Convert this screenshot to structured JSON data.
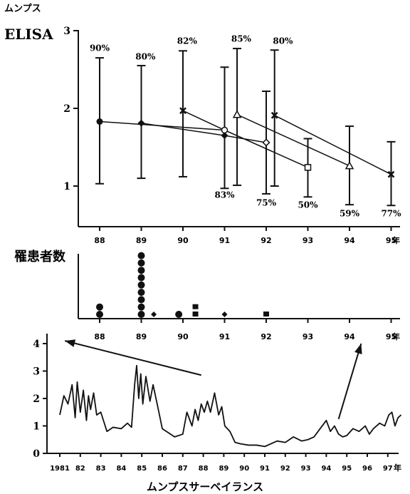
{
  "chart_data": [
    {
      "type": "line",
      "title_line1": "ムンプス",
      "title_line2": "ELISA",
      "ylim": [
        0.5,
        3
      ],
      "y_ticks": [
        1,
        2,
        3
      ],
      "x_ticks": [
        "88",
        "89",
        "90",
        "91",
        "92",
        "93",
        "94",
        "95"
      ],
      "x_unit": "年",
      "series": [
        {
          "marker": "circle-filled",
          "points": [
            [
              88,
              1.83
            ],
            [
              91,
              1.72
            ],
            [
              93,
              1.24
            ]
          ],
          "end_marker": "square-open"
        },
        {
          "marker": "diamond-filled",
          "points": [
            [
              89,
              1.81
            ],
            [
              91,
              1.65
            ],
            [
              92,
              1.56
            ]
          ],
          "end_marker": "diamond-open"
        },
        {
          "marker": "x",
          "points": [
            [
              90,
              1.97
            ],
            [
              91,
              1.72
            ]
          ],
          "end_marker": "circle-open"
        },
        {
          "marker": "triangle-open",
          "points": [
            [
              91.3,
              1.92
            ],
            [
              94,
              1.26
            ]
          ]
        },
        {
          "marker": "x",
          "points": [
            [
              92.2,
              1.91
            ],
            [
              95,
              1.15
            ]
          ]
        }
      ],
      "error_bars": [
        {
          "x": 88,
          "y": 1.83,
          "low": 1.03,
          "high": 2.65
        },
        {
          "x": 89,
          "y": 1.81,
          "low": 1.1,
          "high": 2.55
        },
        {
          "x": 90,
          "y": 1.97,
          "low": 1.12,
          "high": 2.74
        },
        {
          "x": 91,
          "y": 1.72,
          "low": 0.97,
          "high": 2.53
        },
        {
          "x": 91.3,
          "y": 1.92,
          "low": 1.01,
          "high": 2.77
        },
        {
          "x": 92,
          "y": 1.56,
          "low": 0.9,
          "high": 2.22
        },
        {
          "x": 92.2,
          "y": 1.91,
          "low": 1.0,
          "high": 2.75
        },
        {
          "x": 93,
          "y": 1.24,
          "low": 0.86,
          "high": 1.61
        },
        {
          "x": 94,
          "y": 1.26,
          "low": 0.76,
          "high": 1.77
        },
        {
          "x": 95,
          "y": 1.15,
          "low": 0.75,
          "high": 1.57
        }
      ],
      "annotations": [
        {
          "text": "90%",
          "x": 88,
          "y": 2.74
        },
        {
          "text": "80%",
          "x": 89.1,
          "y": 2.63
        },
        {
          "text": "82%",
          "x": 90.1,
          "y": 2.83
        },
        {
          "text": "85%",
          "x": 91.4,
          "y": 2.86
        },
        {
          "text": "80%",
          "x": 92.4,
          "y": 2.83
        },
        {
          "text": "83%",
          "x": 91.0,
          "y": 0.85
        },
        {
          "text": "75%",
          "x": 92.0,
          "y": 0.75
        },
        {
          "text": "50%",
          "x": 93.0,
          "y": 0.72
        },
        {
          "text": "59%",
          "x": 94.0,
          "y": 0.61
        },
        {
          "text": "77%",
          "x": 95.0,
          "y": 0.61
        }
      ]
    },
    {
      "type": "scatter",
      "title": "罹患者数",
      "x_ticks": [
        "88",
        "89",
        "90",
        "91",
        "92",
        "93",
        "94",
        "95"
      ],
      "x_unit": "年",
      "points": [
        {
          "x": 88.0,
          "count": 2,
          "marker": "circle"
        },
        {
          "x": 89.0,
          "count": 9,
          "marker": "circle"
        },
        {
          "x": 89.3,
          "count": 1,
          "marker": "diamond"
        },
        {
          "x": 89.9,
          "count": 1,
          "marker": "circle"
        },
        {
          "x": 90.3,
          "count": 2,
          "marker": "square"
        },
        {
          "x": 91.0,
          "count": 1,
          "marker": "diamond"
        },
        {
          "x": 92.0,
          "count": 1,
          "marker": "square"
        }
      ]
    },
    {
      "type": "line",
      "ylim": [
        0,
        4.3
      ],
      "y_ticks": [
        0,
        1,
        2,
        3,
        4
      ],
      "x_ticks": [
        "1981",
        "82",
        "83",
        "84",
        "85",
        "86",
        "87",
        "88",
        "89",
        "90",
        "91",
        "92",
        "93",
        "94",
        "95",
        "96",
        "97"
      ],
      "x_unit": "年",
      "xlabel": "ムンプスサーベイランス",
      "x": [
        1981.0,
        1981.2,
        1981.4,
        1981.6,
        1981.75,
        1981.85,
        1982.0,
        1982.15,
        1982.3,
        1982.4,
        1982.5,
        1982.65,
        1982.8,
        1983.0,
        1983.3,
        1983.6,
        1984.0,
        1984.3,
        1984.5,
        1984.65,
        1984.75,
        1984.85,
        1984.95,
        1985.05,
        1985.2,
        1985.4,
        1985.55,
        1985.75,
        1986.0,
        1986.3,
        1986.6,
        1987.0,
        1987.2,
        1987.45,
        1987.6,
        1987.75,
        1987.9,
        1988.05,
        1988.2,
        1988.35,
        1988.55,
        1988.75,
        1988.9,
        1989.05,
        1989.3,
        1989.55,
        1989.8,
        1990.2,
        1990.6,
        1991.0,
        1991.3,
        1991.6,
        1992.0,
        1992.4,
        1992.8,
        1993.1,
        1993.4,
        1993.7,
        1994.0,
        1994.2,
        1994.4,
        1994.6,
        1994.8,
        1995.0,
        1995.3,
        1995.6,
        1995.9,
        1996.1,
        1996.3,
        1996.6,
        1996.85,
        1997.05,
        1997.2,
        1997.35,
        1997.5,
        1997.65
      ],
      "y": [
        1.4,
        2.1,
        1.8,
        2.5,
        1.3,
        2.6,
        1.5,
        2.3,
        1.2,
        2.1,
        1.6,
        2.2,
        1.4,
        1.5,
        0.8,
        0.95,
        0.9,
        1.1,
        0.95,
        2.5,
        3.2,
        2.0,
        2.9,
        1.8,
        2.8,
        1.9,
        2.5,
        1.8,
        0.9,
        0.75,
        0.6,
        0.7,
        1.5,
        1.0,
        1.6,
        1.2,
        1.8,
        1.5,
        1.9,
        1.5,
        2.2,
        1.4,
        1.7,
        1.0,
        0.8,
        0.4,
        0.35,
        0.3,
        0.3,
        0.25,
        0.35,
        0.45,
        0.4,
        0.6,
        0.45,
        0.5,
        0.6,
        0.9,
        1.2,
        0.8,
        1.0,
        0.7,
        0.6,
        0.65,
        0.9,
        0.8,
        1.0,
        0.7,
        0.9,
        1.1,
        1.0,
        1.4,
        1.5,
        1.0,
        1.3,
        1.4
      ],
      "arrows": [
        {
          "from": [
            1987.9,
            2.85
          ],
          "to": [
            1981.25,
            4.1
          ]
        },
        {
          "from": [
            1994.6,
            1.25
          ],
          "to": [
            1995.7,
            4.0
          ]
        }
      ]
    }
  ]
}
